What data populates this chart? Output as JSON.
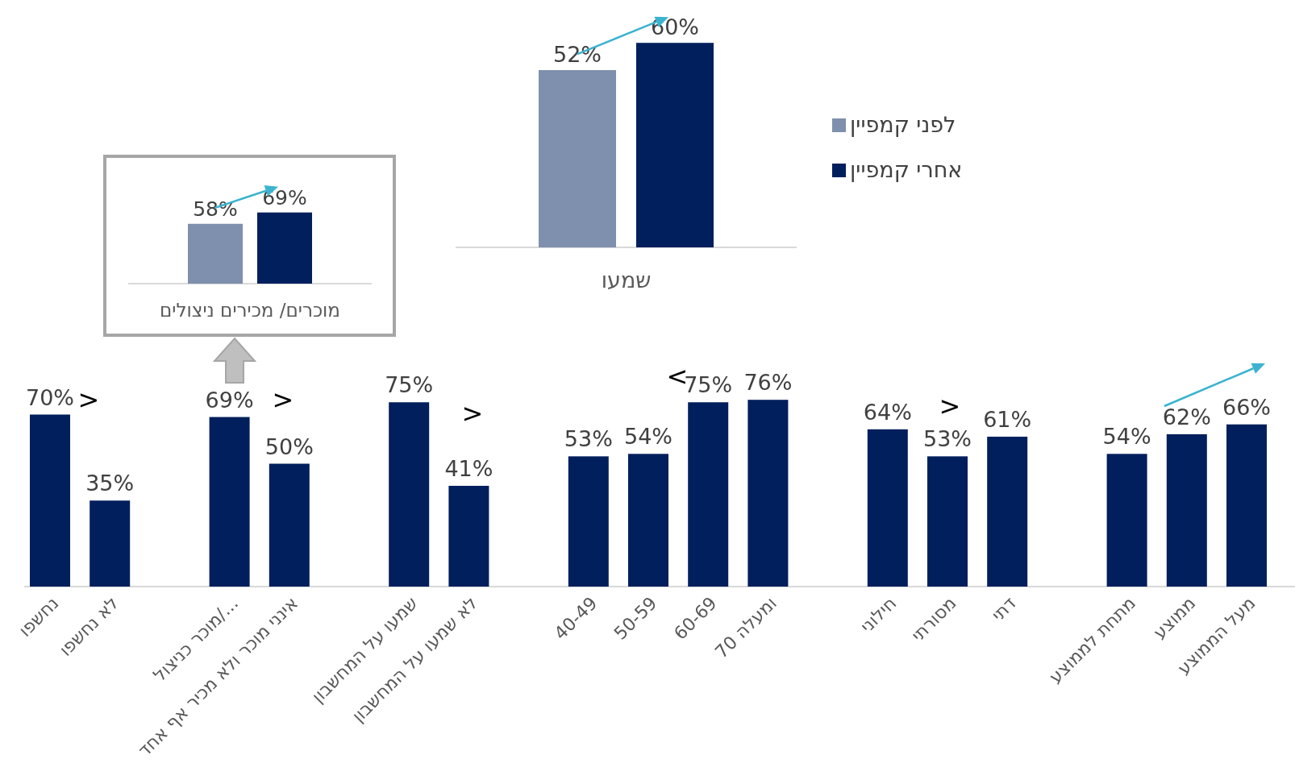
{
  "chart_data": [
    {
      "type": "bar",
      "categories": [
        "שמעו"
      ],
      "legend": "right",
      "series": [
        {
          "name": "לפני קמפיין",
          "color": "#7f8fae",
          "values": [
            52
          ],
          "value_labels": [
            "52%"
          ]
        },
        {
          "name": "אחרי קמפיין",
          "color": "#001f5c",
          "values": [
            60
          ],
          "value_labels": [
            "60%"
          ]
        }
      ]
    },
    {
      "type": "bar",
      "categories": [
        "מוכרים/ מכירים ניצולים"
      ],
      "series": [
        {
          "color": "#7f8fae",
          "values": [
            58
          ],
          "value_labels": [
            "58%"
          ]
        },
        {
          "color": "#001f5c",
          "values": [
            69
          ],
          "value_labels": [
            "69%"
          ]
        }
      ]
    },
    {
      "type": "bar",
      "color": "#001f5c",
      "categories": [
        "נחשפו",
        "לא נחשפו",
        null,
        "מוכר כניצול/...",
        "אינני מוכר ולא מכיר אף אחד",
        null,
        "שמעו על המחשבון",
        "לא שמעו על המחשבון",
        null,
        "40-49",
        "50-59",
        "60-69",
        "70 ומעלה",
        null,
        "חילוני",
        "מסורתי",
        "דתי",
        null,
        "מתחת לממוצע",
        "ממוצע",
        "מעל הממוצע"
      ],
      "values": [
        70,
        35,
        null,
        69,
        50,
        null,
        75,
        41,
        null,
        53,
        54,
        75,
        76,
        null,
        64,
        53,
        61,
        null,
        54,
        62,
        66
      ],
      "value_labels": [
        "70%",
        "35%",
        null,
        "69%",
        "50%",
        null,
        "75%",
        "41%",
        null,
        "53%",
        "54%",
        "75%",
        "76%",
        null,
        "64%",
        "53%",
        "61%",
        null,
        "54%",
        "62%",
        "66%"
      ],
      "annotations": [
        ">",
        ">",
        ">",
        "<",
        ">"
      ]
    }
  ]
}
